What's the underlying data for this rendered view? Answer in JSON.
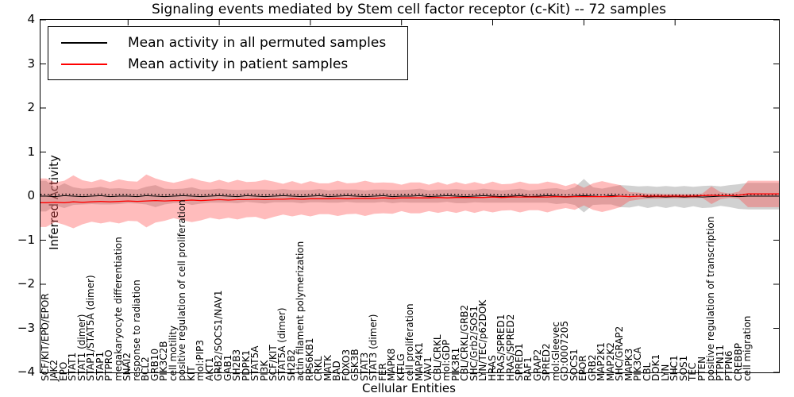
{
  "figure": {
    "title": "Signaling events mediated by Stem cell factor receptor (c-Kit) -- 72 samples",
    "xlabel": "Cellular Entities",
    "ylabel": "Inferred Activity"
  },
  "legend": {
    "items": [
      {
        "label": "Mean activity in all permuted samples",
        "color": "#000000"
      },
      {
        "label": "Mean activity in patient samples",
        "color": "#ff0000"
      }
    ]
  },
  "chart_data": {
    "type": "line",
    "title": "Signaling events mediated by Stem cell factor receptor (c-Kit) -- 72 samples",
    "xlabel": "Cellular Entities",
    "ylabel": "Inferred Activity",
    "ylim": [
      -4,
      4
    ],
    "yticks": [
      -4,
      -3,
      -2,
      -1,
      0,
      1,
      2,
      3,
      4
    ],
    "grid": false,
    "legend_position": "upper left",
    "colors": {
      "permuted_line": "#000000",
      "patient_line": "#ff0000",
      "permuted_band": "#999999",
      "patient_band": "#ff4040"
    },
    "categories": [
      "SCF/KIT/EPO/EPOR",
      "JAK2",
      "EPO",
      "STAT1",
      "STAT1 (dimer)",
      "STAP1/STAT5A (dimer)",
      "STAP1",
      "PTPRO",
      "megakaryocyte differentiation",
      "SNAI2",
      "response to radiation",
      "BCL2",
      "GRB10",
      "PIK3C2B",
      "cell motility",
      "positive regulation of cell proliferation",
      "KIT",
      "mol:PIP3",
      "AKT1",
      "GRB2/SOCS1/NAV1",
      "GAB1",
      "SH2B3",
      "PDPK1",
      "STAT5A",
      "PI3K",
      "SCF/KIT",
      "STAT5A (dimer)",
      "SH2B2",
      "actin filament polymerization",
      "RPS6KB1",
      "CRKL",
      "MATK",
      "BAD",
      "FOXO3",
      "GSK3B",
      "STAT3",
      "STAT3 (dimer)",
      "FER",
      "MAPK8",
      "KITLG",
      "cell proliferation",
      "MAP4K1",
      "VAV1",
      "CBL/CRKL",
      "mol:GDP",
      "PIK3R1",
      "CBL/CRKL/GRB2",
      "SHC/Grb2/SOS1",
      "LYN/TEC/p62DOK",
      "HRAS",
      "HRAS/SPRED1",
      "HRAS/SPRED2",
      "SPRED1",
      "RAF1",
      "GRAP2",
      "SPRED2",
      "mol:Gleevec",
      "GO:0007205",
      "SOCS1",
      "EPOR",
      "GRB2",
      "MAP2K1",
      "MAP2K2",
      "SHC/GRAP2",
      "MAPK3",
      "PIK3CA",
      "CBL",
      "DOK1",
      "LYN",
      "SHC1",
      "SOS1",
      "TEC",
      "PTEN",
      "positive regulation of transcription",
      "PTPN11",
      "PTPN6",
      "CREBBP",
      "cell migration"
    ],
    "series": [
      {
        "name": "Mean activity in all permuted samples",
        "color": "#000000",
        "style": "solid-with-dot-markers",
        "values": [
          0.0,
          -0.01,
          0.01,
          0.0,
          -0.01,
          0.0,
          0.01,
          -0.01,
          0.0,
          0.0,
          -0.01,
          0.01,
          0.0,
          -0.01,
          0.0,
          0.01,
          0.0,
          -0.01,
          0.0,
          0.01,
          0.0,
          -0.01,
          0.01,
          0.0,
          -0.01,
          0.0,
          0.01,
          0.0,
          -0.01,
          0.0,
          0.01,
          -0.01,
          0.0,
          0.01,
          0.0,
          -0.01,
          0.0,
          0.01,
          -0.01,
          0.0,
          0.0,
          0.01,
          -0.01,
          0.0,
          0.01,
          0.0,
          -0.01,
          0.0,
          0.01,
          0.0,
          -0.01,
          0.0,
          0.01,
          -0.01,
          0.0,
          0.01,
          0.0,
          -0.01,
          0.0,
          0.01,
          0.0,
          -0.01,
          0.01,
          0.0,
          -0.01,
          0.0,
          -0.02,
          -0.01,
          -0.02,
          -0.01,
          -0.02,
          -0.01,
          -0.02,
          -0.01,
          0.0,
          0.0,
          -0.01,
          0.0
        ]
      },
      {
        "name": "Mean activity in patient samples",
        "color": "#ff0000",
        "style": "solid",
        "values": [
          -0.15,
          -0.14,
          -0.15,
          -0.13,
          -0.14,
          -0.13,
          -0.12,
          -0.13,
          -0.12,
          -0.11,
          -0.12,
          -0.11,
          -0.1,
          -0.11,
          -0.1,
          -0.1,
          -0.09,
          -0.1,
          -0.09,
          -0.08,
          -0.09,
          -0.08,
          -0.08,
          -0.07,
          -0.08,
          -0.07,
          -0.07,
          -0.06,
          -0.07,
          -0.06,
          -0.06,
          -0.06,
          -0.05,
          -0.06,
          -0.05,
          -0.05,
          -0.05,
          -0.04,
          -0.05,
          -0.04,
          -0.04,
          -0.04,
          -0.04,
          -0.03,
          -0.04,
          -0.03,
          -0.03,
          -0.03,
          -0.03,
          -0.02,
          -0.03,
          -0.02,
          -0.02,
          -0.02,
          -0.02,
          -0.02,
          -0.01,
          -0.02,
          -0.01,
          -0.01,
          -0.01,
          -0.01,
          -0.01,
          0.0,
          -0.01,
          0.0,
          0.0,
          0.0,
          0.0,
          0.0,
          0.0,
          0.0,
          0.01,
          0.02,
          0.01,
          0.01,
          0.02,
          0.05
        ]
      }
    ],
    "bands": [
      {
        "name": "permuted mean ± std",
        "center_series": 0,
        "color": "#999999",
        "opacity": 0.45,
        "std": [
          0.35,
          0.2,
          0.28,
          0.2,
          0.18,
          0.18,
          0.2,
          0.18,
          0.18,
          0.16,
          0.16,
          0.2,
          0.25,
          0.18,
          0.16,
          0.16,
          0.2,
          0.16,
          0.15,
          0.16,
          0.15,
          0.15,
          0.14,
          0.15,
          0.16,
          0.14,
          0.15,
          0.14,
          0.15,
          0.14,
          0.15,
          0.14,
          0.15,
          0.14,
          0.15,
          0.14,
          0.15,
          0.14,
          0.15,
          0.14,
          0.15,
          0.16,
          0.14,
          0.15,
          0.14,
          0.16,
          0.15,
          0.14,
          0.16,
          0.15,
          0.14,
          0.15,
          0.16,
          0.14,
          0.15,
          0.16,
          0.18,
          0.15,
          0.2,
          0.38,
          0.2,
          0.18,
          0.2,
          0.25,
          0.25,
          0.22,
          0.25,
          0.22,
          0.25,
          0.22,
          0.25,
          0.22,
          0.25,
          0.25,
          0.22,
          0.25,
          0.28,
          0.3
        ]
      },
      {
        "name": "patient mean ± std",
        "center_series": 1,
        "color": "#ff4040",
        "opacity": 0.35,
        "std": [
          0.55,
          0.45,
          0.5,
          0.6,
          0.5,
          0.45,
          0.5,
          0.45,
          0.5,
          0.45,
          0.45,
          0.6,
          0.5,
          0.45,
          0.4,
          0.45,
          0.5,
          0.45,
          0.4,
          0.45,
          0.4,
          0.45,
          0.4,
          0.4,
          0.45,
          0.4,
          0.35,
          0.4,
          0.35,
          0.4,
          0.35,
          0.35,
          0.4,
          0.35,
          0.35,
          0.4,
          0.35,
          0.35,
          0.35,
          0.3,
          0.35,
          0.35,
          0.3,
          0.35,
          0.3,
          0.35,
          0.3,
          0.35,
          0.3,
          0.35,
          0.3,
          0.3,
          0.35,
          0.3,
          0.3,
          0.35,
          0.3,
          0.25,
          0.3,
          0.2,
          0.3,
          0.35,
          0.3,
          0.25,
          0.1,
          0.08,
          0.06,
          0.06,
          0.05,
          0.05,
          0.05,
          0.05,
          0.05,
          0.2,
          0.08,
          0.05,
          0.08,
          0.3
        ]
      }
    ],
    "xticks_every": 10
  }
}
